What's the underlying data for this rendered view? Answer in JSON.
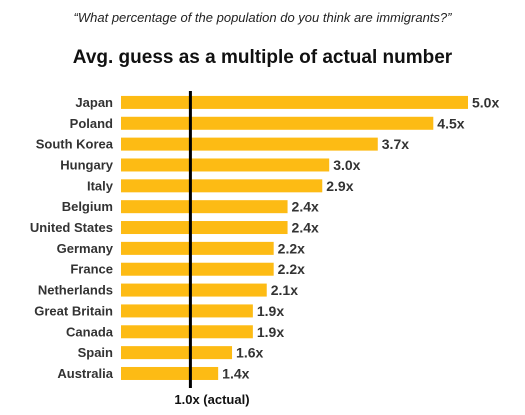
{
  "header": {
    "question": "“What percentage of the population do you think are immigrants?”",
    "title": "Avg. guess as a multiple of actual number"
  },
  "chart_data": {
    "type": "bar",
    "orientation": "horizontal",
    "title": "Avg. guess as a multiple of actual number",
    "categories": [
      "Japan",
      "Poland",
      "South Korea",
      "Hungary",
      "Italy",
      "Belgium",
      "United States",
      "Germany",
      "France",
      "Netherlands",
      "Great Britain",
      "Canada",
      "Spain",
      "Australia"
    ],
    "values": [
      5.0,
      4.5,
      3.7,
      3.0,
      2.9,
      2.4,
      2.4,
      2.2,
      2.2,
      2.1,
      1.9,
      1.9,
      1.6,
      1.4
    ],
    "value_labels": [
      "5.0x",
      "4.5x",
      "3.7x",
      "3.0x",
      "2.9x",
      "2.4x",
      "2.4x",
      "2.2x",
      "2.2x",
      "2.1x",
      "1.9x",
      "1.9x",
      "1.6x",
      "1.4x"
    ],
    "xlim": [
      0,
      5.0
    ],
    "reference_line": {
      "value": 1.0,
      "label": "1.0x (actual)"
    },
    "bar_color": "#FDBB14",
    "reference_color": "#000000",
    "grid": false,
    "legend": "none"
  }
}
